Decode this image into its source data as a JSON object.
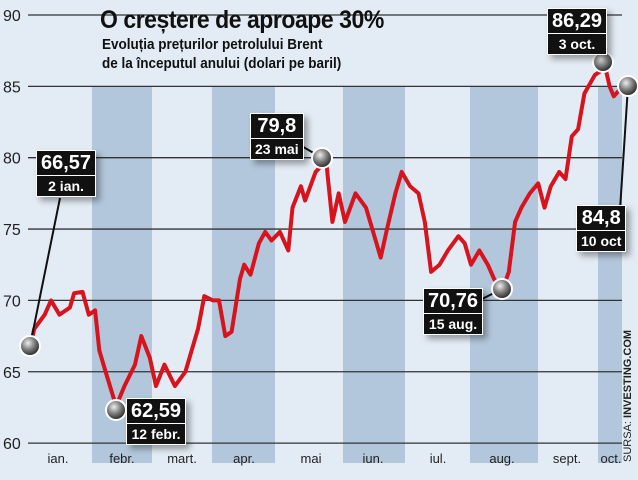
{
  "chart_data": {
    "type": "line",
    "title": "O creștere de aproape 30%",
    "subtitle_lines": [
      "Evoluția prețurilor petrolului Brent",
      "de la începutul anului (dolari pe baril)"
    ],
    "ylabel": "dolari pe baril",
    "ylim": [
      60,
      90
    ],
    "yticks": [
      60,
      65,
      70,
      75,
      80,
      85,
      90
    ],
    "ytick_labels": [
      "60",
      "65",
      "70",
      "75",
      "80",
      "85",
      "90"
    ],
    "months": [
      "ian.",
      "febr.",
      "mart.",
      "apr.",
      "mai",
      "iun.",
      "iul.",
      "aug.",
      "sept.",
      "oct."
    ],
    "x_unit": "day of year",
    "series": [
      {
        "name": "Brent",
        "color": "#d7141d",
        "points": [
          [
            2,
            66.57
          ],
          [
            4,
            68
          ],
          [
            9,
            69
          ],
          [
            12,
            70
          ],
          [
            16,
            69
          ],
          [
            21,
            69.5
          ],
          [
            23,
            70.5
          ],
          [
            27,
            70.6
          ],
          [
            30,
            69
          ],
          [
            33,
            69.3
          ],
          [
            35,
            66.5
          ],
          [
            38,
            65
          ],
          [
            43,
            62.59
          ],
          [
            47,
            64
          ],
          [
            52,
            65.5
          ],
          [
            55,
            67.5
          ],
          [
            59,
            66
          ],
          [
            62,
            64
          ],
          [
            66,
            65.5
          ],
          [
            71,
            64
          ],
          [
            76,
            65
          ],
          [
            78,
            66
          ],
          [
            82,
            68
          ],
          [
            85,
            70.3
          ],
          [
            89,
            70
          ],
          [
            92,
            70
          ],
          [
            95,
            67.5
          ],
          [
            98,
            67.8
          ],
          [
            102,
            71.5
          ],
          [
            104,
            72.5
          ],
          [
            107,
            71.8
          ],
          [
            111,
            74
          ],
          [
            114,
            74.8
          ],
          [
            117,
            74.2
          ],
          [
            121,
            74.8
          ],
          [
            125,
            73.5
          ],
          [
            127,
            76.5
          ],
          [
            131,
            78
          ],
          [
            133,
            77
          ],
          [
            138,
            79
          ],
          [
            143,
            79.8
          ],
          [
            146,
            75.5
          ],
          [
            149,
            77.5
          ],
          [
            152,
            75.5
          ],
          [
            157,
            77.5
          ],
          [
            162,
            76.5
          ],
          [
            165,
            75
          ],
          [
            169,
            73
          ],
          [
            172,
            75
          ],
          [
            176,
            77.5
          ],
          [
            179,
            79
          ],
          [
            183,
            78
          ],
          [
            187,
            77.5
          ],
          [
            190,
            75.5
          ],
          [
            193,
            72
          ],
          [
            197,
            72.5
          ],
          [
            201,
            73.5
          ],
          [
            206,
            74.5
          ],
          [
            209,
            74
          ],
          [
            212,
            72.5
          ],
          [
            216,
            73.5
          ],
          [
            220,
            72.5
          ],
          [
            223,
            71.5
          ],
          [
            227,
            70.76
          ],
          [
            230,
            72
          ],
          [
            233,
            75.5
          ],
          [
            236,
            76.5
          ],
          [
            240,
            77.5
          ],
          [
            244,
            78.2
          ],
          [
            247,
            76.5
          ],
          [
            250,
            78
          ],
          [
            254,
            79
          ],
          [
            257,
            78.5
          ],
          [
            260,
            81.5
          ],
          [
            263,
            82
          ],
          [
            266,
            84.5
          ],
          [
            271,
            85.8
          ],
          [
            276,
            86.29
          ],
          [
            278,
            85
          ],
          [
            280,
            84.3
          ],
          [
            283,
            84.8
          ]
        ]
      }
    ],
    "annotations": [
      {
        "value": "66,57",
        "date": "2 ian."
      },
      {
        "value": "62,59",
        "date": "12 febr."
      },
      {
        "value": "79,8",
        "date": "23 mai"
      },
      {
        "value": "70,76",
        "date": "15 aug."
      },
      {
        "value": "86,29",
        "date": "3 oct."
      },
      {
        "value": "84,8",
        "date": "10 oct"
      }
    ],
    "source_label": "SURSA:",
    "source": "INVESTING.COM"
  }
}
